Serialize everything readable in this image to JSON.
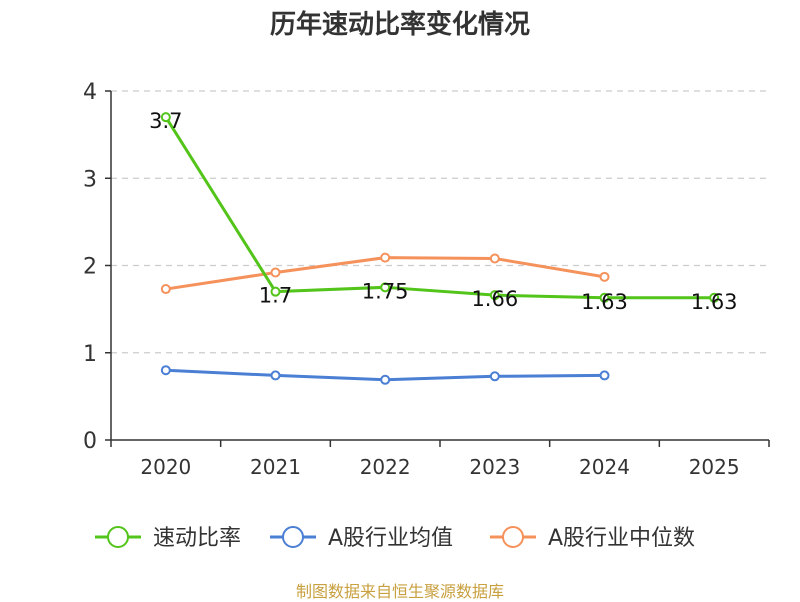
{
  "chart_data": {
    "type": "line",
    "title": "历年速动比率变化情况",
    "xlabel": "",
    "ylabel": "",
    "categories": [
      "2020",
      "2021",
      "2022",
      "2023",
      "2024",
      "2025"
    ],
    "ylim": [
      0,
      4
    ],
    "yticks": [
      0,
      1,
      2,
      3,
      4
    ],
    "grid": true,
    "legend_position": "bottom",
    "series": [
      {
        "name": "速动比率",
        "color": "#52c41a",
        "values": [
          3.7,
          1.7,
          1.75,
          1.66,
          1.63,
          1.63
        ],
        "labels": [
          "3.7",
          "1.7",
          "1.75",
          "1.66",
          "1.63",
          "1.63"
        ]
      },
      {
        "name": "A股行业均值",
        "color": "#4a7fd4",
        "values": [
          0.8,
          0.74,
          0.69,
          0.73,
          0.74,
          null
        ]
      },
      {
        "name": "A股行业中位数",
        "color": "#f5915a",
        "values": [
          1.73,
          1.92,
          2.09,
          2.08,
          1.87,
          null
        ]
      }
    ]
  },
  "source": "制图数据来自恒生聚源数据库"
}
